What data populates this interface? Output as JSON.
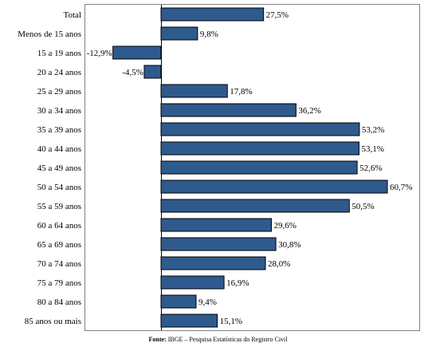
{
  "chart_data": {
    "type": "bar",
    "orientation": "horizontal",
    "title": "",
    "xlabel": "",
    "ylabel": "",
    "xlim": [
      -15,
      62
    ],
    "grid": false,
    "legend": "none",
    "bar_color": "#2e5a8e",
    "categories": [
      "Total",
      "Menos de 15 anos",
      "15 a 19 anos",
      "20 a 24 anos",
      "25 a 29 anos",
      "30 a 34 anos",
      "35 a 39 anos",
      "40 a 44 anos",
      "45 a 49 anos",
      "50 a 54 anos",
      "55 a 59 anos",
      "60 a 64 anos",
      "65 a 69 anos",
      "70 a 74 anos",
      "75 a 79 anos",
      "80 a 84 anos",
      "85 anos ou mais"
    ],
    "values": [
      27.5,
      9.8,
      -12.9,
      -4.5,
      17.8,
      36.2,
      53.2,
      53.1,
      52.6,
      60.7,
      50.5,
      29.6,
      30.8,
      28.0,
      16.9,
      9.4,
      15.1
    ],
    "value_labels": [
      "27,5%",
      "9,8%",
      "-12,9%",
      "-4,5%",
      "17,8%",
      "36,2%",
      "53,2%",
      "53,1%",
      "52,6%",
      "60,7%",
      "50,5%",
      "29,6%",
      "30,8%",
      "28,0%",
      "16,9%",
      "9,4%",
      "15,1%"
    ]
  },
  "source": {
    "prefix": "Fonte:",
    "text": " IBGE – Pesquisa Estatísticas do Registro Civil"
  }
}
